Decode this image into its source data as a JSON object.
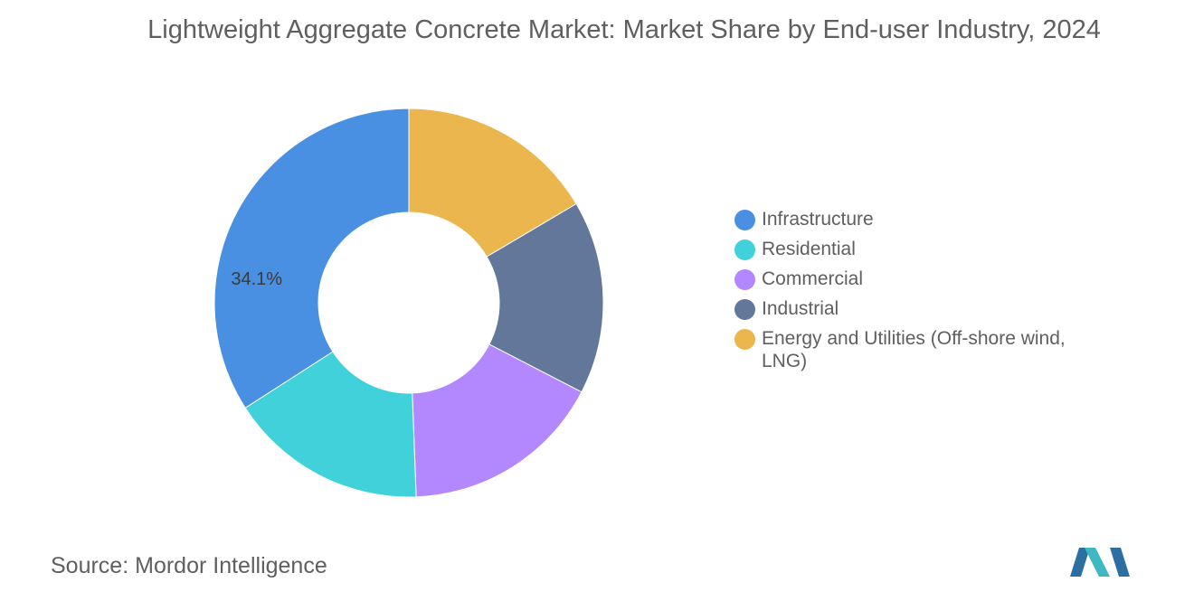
{
  "chart_data": {
    "type": "pie",
    "title": "Lightweight Aggregate Concrete Market: Market Share by End-user Industry, 2024",
    "categories": [
      "Infrastructure",
      "Residential",
      "Commercial",
      "Industrial",
      "Energy and Utilities (Off-shore wind, LNG)"
    ],
    "values": [
      34.1,
      16.5,
      16.8,
      16.1,
      16.5
    ],
    "colors": [
      "#4A90E2",
      "#40D1DA",
      "#B388FF",
      "#62779A",
      "#EAB64D"
    ],
    "data_labels": [
      "34.1%",
      "",
      "",
      "",
      ""
    ],
    "donut": true,
    "legend_position": "right"
  },
  "source": {
    "label": "Source:",
    "value": "Mordor Intelligence"
  },
  "logo": {
    "name": "mordor-intelligence-logo",
    "colors": [
      "#2C6FA3",
      "#3FB8C4"
    ]
  }
}
